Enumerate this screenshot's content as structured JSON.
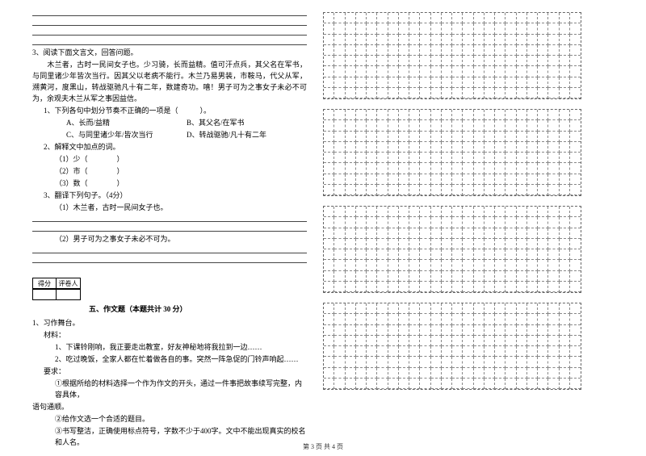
{
  "left": {
    "q3_intro": "3、阅读下面文言文，回答问题。",
    "passage": "　　木兰者，古时一民间女子也。少习骑，长而益精。值可汗点兵，其父名在军书，与同里诸少年皆次当行。因其父以老病不能行。木兰乃易男装，市鞍马，代父从军，溯黄河，度黑山，转战驱驰凡十有二年，数建奇功。嘻！男子可为之事女子未必不可为，余观夫木兰从军之事因益信。",
    "sub1": "1、下列各句中划分节奏不正确的一项是（　　　）。",
    "optA": "A、长而/益精",
    "optB": "B、其父名/在军书",
    "optC": "C、与同里诸少年/皆次当行",
    "optD": "D、转战驱驰/凡十有二年",
    "sub2": "2、解释文中加点的词。",
    "sub2_1": "（1）少（　　　　）",
    "sub2_2": "（2）市（　　　　）",
    "sub2_3": "（3）数（　　　　）",
    "sub3": "3、翻译下列句子。（4分）",
    "sub3_1": "（1）木兰者，古时一民间女子也。",
    "sub3_2": "（2）男子可为之事女子未必不可为。",
    "score_label1": "得分",
    "score_label2": "评卷人",
    "section5": "五、作文题（本题共计 30 分）",
    "zw_title": "1、习作舞台。",
    "zw_mat": "材料：",
    "zw_m1": "1、下课铃刚响，我正要走出教室，好友神秘地将我拉到一边……",
    "zw_m2": "2、吃过晚饭，全家人都在忙着做各自的事。突然一阵急促的门铃声响起……",
    "zw_req": "要求：",
    "zw_r1": "①根据所给的材料选择一个作为作文的开头，通过一件事把故事续写完整，内容具体，",
    "zw_r1b": "语句通顺。",
    "zw_r2": "②给作文选一个合适的题目。",
    "zw_r3": "③书写整洁，正确使用标点符号，字数不少于400字。文中不能出现真实的校名和人名。"
  },
  "footer": "第 3 页 共 4 页",
  "grid": {
    "cols": 24,
    "rows": 8,
    "boxes": 4
  }
}
